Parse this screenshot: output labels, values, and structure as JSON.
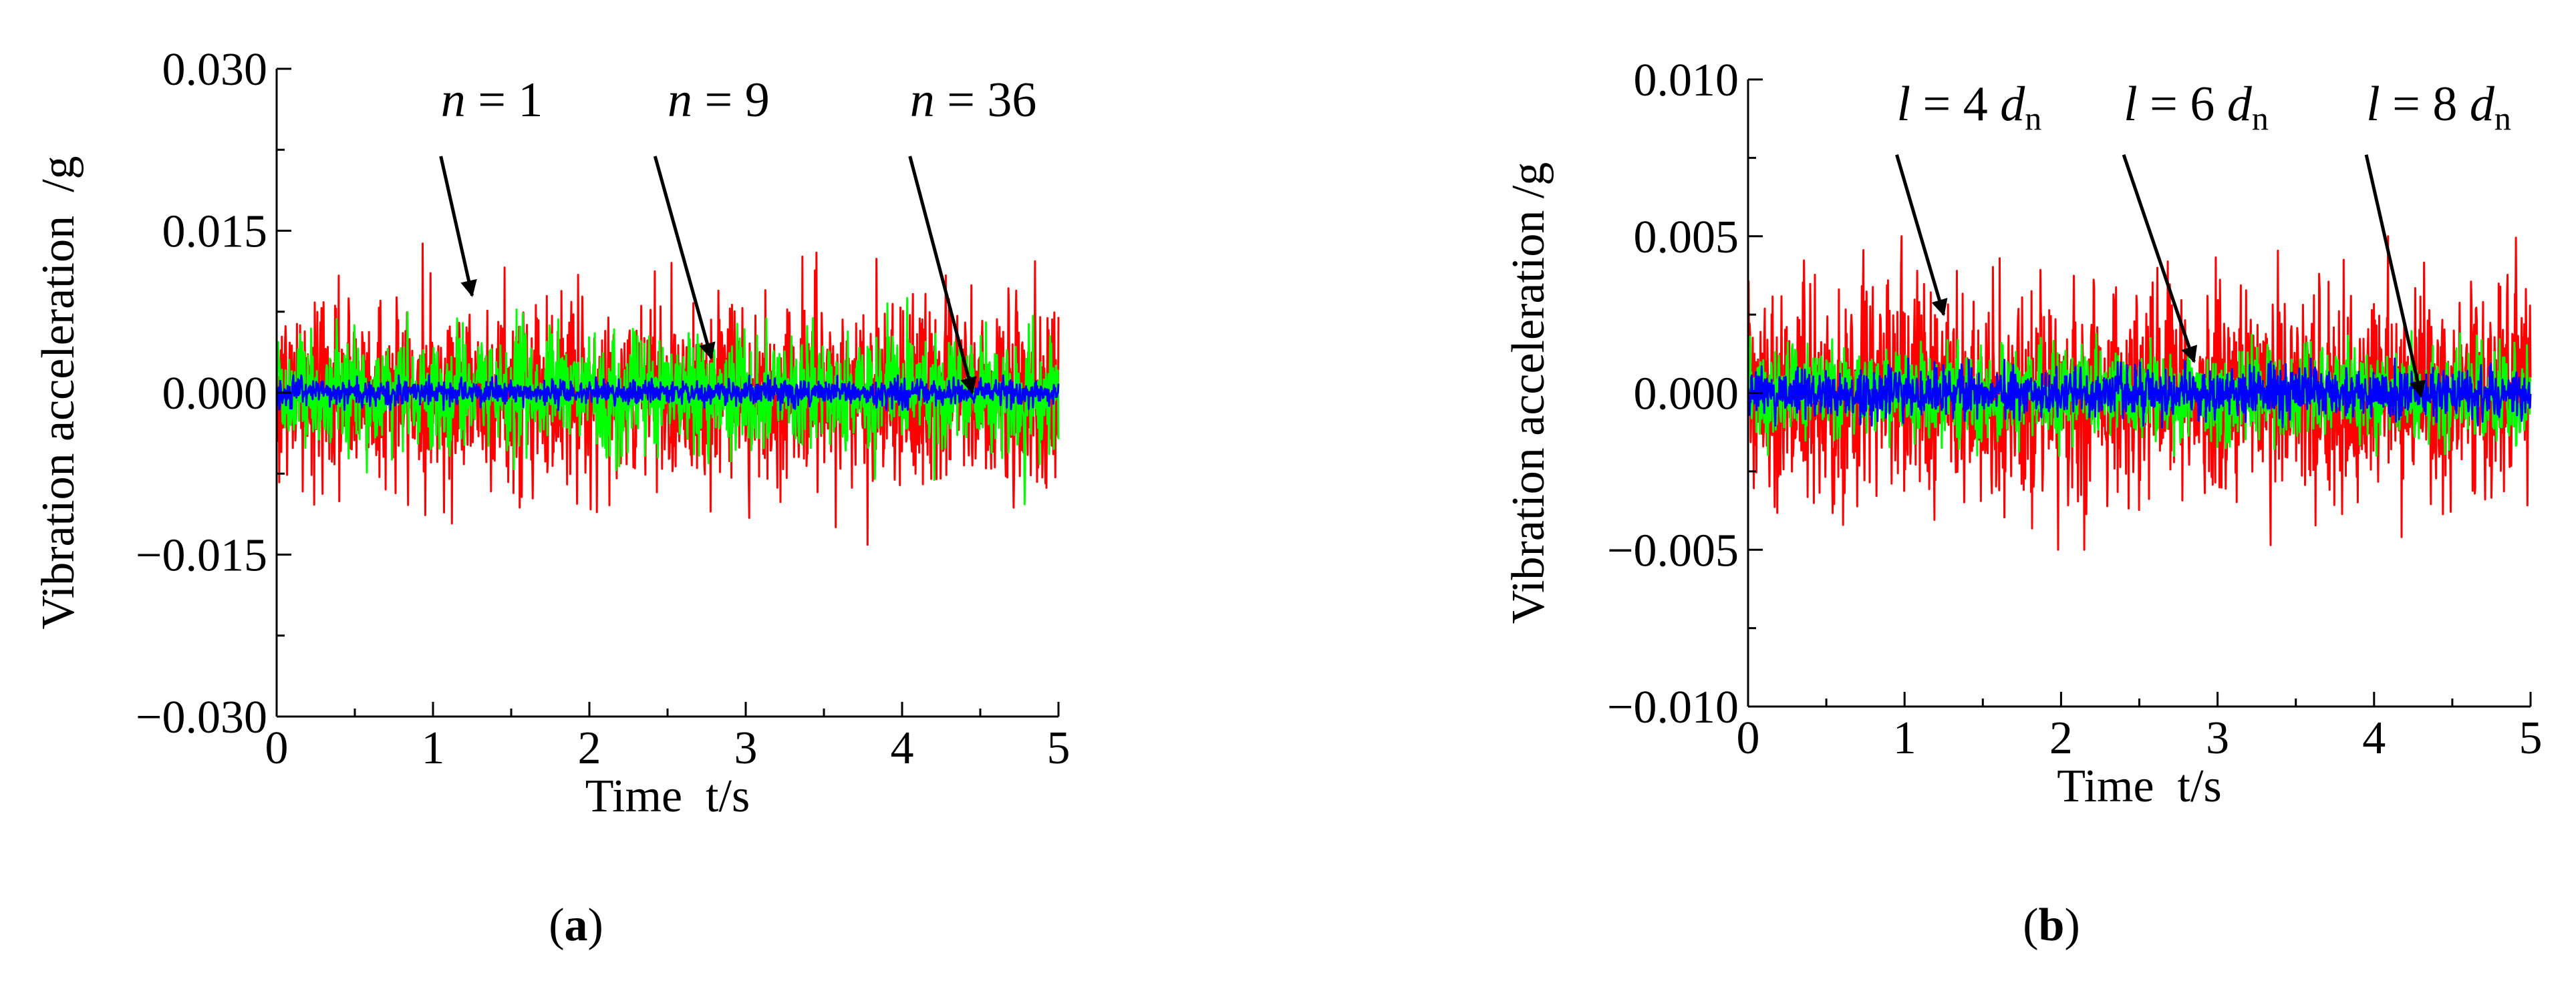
{
  "figure": {
    "background": "#ffffff"
  },
  "chart_data": [
    {
      "panel_label": "a",
      "type": "line",
      "title": "",
      "xlabel": "Time  t/s",
      "ylabel": "Vibration acceleration  /g",
      "xlim": [
        0,
        5
      ],
      "ylim": [
        -0.03,
        0.03
      ],
      "xticks": [
        0,
        1,
        2,
        3,
        4,
        5
      ],
      "xtick_labels": [
        "0",
        "1",
        "2",
        "3",
        "4",
        "5"
      ],
      "yticks": [
        -0.03,
        -0.015,
        0,
        0.015,
        0.03
      ],
      "ytick_labels": [
        "−0.030",
        "−0.015",
        "0.000",
        "0.015",
        "0.030"
      ],
      "grid": false,
      "legend": "none",
      "series": [
        {
          "label_var": "n",
          "label_eq": " = ",
          "label_num": "1",
          "color": "#ff0000",
          "typical_amplitude": 0.0078,
          "peak_amplitude": 0.017,
          "annotation_text_x": 1.05,
          "annotation_text_y": 0.0256,
          "annotation_tail_xy": [
            1.05,
            0.0219
          ],
          "annotation_head_xy": [
            1.25,
            0.009
          ]
        },
        {
          "label_var": "n",
          "label_eq": " = ",
          "label_num": "9",
          "color": "#00ff00",
          "typical_amplitude": 0.0048,
          "peak_amplitude": 0.012,
          "annotation_text_x": 2.5,
          "annotation_text_y": 0.0256,
          "annotation_tail_xy": [
            2.42,
            0.0219
          ],
          "annotation_head_xy": [
            2.78,
            0.0032
          ]
        },
        {
          "label_var": "n",
          "label_eq": " = ",
          "label_num": "36",
          "color": "#0000ff",
          "typical_amplitude": 0.0011,
          "peak_amplitude": 0.0016,
          "annotation_text_x": 4.05,
          "annotation_text_y": 0.0256,
          "annotation_tail_xy": [
            4.05,
            0.0219
          ],
          "annotation_head_xy": [
            4.45,
            0.0
          ]
        }
      ]
    },
    {
      "panel_label": "b",
      "type": "line",
      "title": "",
      "xlabel": "Time  t/s",
      "ylabel": "Vibration acceleration /g",
      "xlim": [
        0,
        5
      ],
      "ylim": [
        -0.01,
        0.01
      ],
      "xticks": [
        0,
        1,
        2,
        3,
        4,
        5
      ],
      "xtick_labels": [
        "0",
        "1",
        "2",
        "3",
        "4",
        "5"
      ],
      "yticks": [
        -0.01,
        -0.005,
        0,
        0.005,
        0.01
      ],
      "ytick_labels": [
        "−0.010",
        "−0.005",
        "0.000",
        "0.005",
        "0.010"
      ],
      "grid": false,
      "legend": "none",
      "series": [
        {
          "label_var": "l",
          "label_eq": " = ",
          "label_num": "4 ",
          "label_sub_var": "d",
          "label_sub": "n",
          "color": "#ff0000",
          "typical_amplitude": 0.003,
          "peak_amplitude": 0.005,
          "annotation_text_x": 0.95,
          "annotation_text_y": 0.0087,
          "annotation_tail_xy": [
            0.95,
            0.0076
          ],
          "annotation_head_xy": [
            1.25,
            0.0025
          ]
        },
        {
          "label_var": "l",
          "label_eq": " = ",
          "label_num": "6 ",
          "label_sub_var": "d",
          "label_sub": "n",
          "color": "#00ff00",
          "typical_amplitude": 0.0013,
          "peak_amplitude": 0.002,
          "annotation_text_x": 2.4,
          "annotation_text_y": 0.0087,
          "annotation_tail_xy": [
            2.4,
            0.0076
          ],
          "annotation_head_xy": [
            2.85,
            0.001
          ]
        },
        {
          "label_var": "l",
          "label_eq": " = ",
          "label_num": "8 ",
          "label_sub_var": "d",
          "label_sub": "n",
          "color": "#0000ff",
          "typical_amplitude": 0.0007,
          "peak_amplitude": 0.0011,
          "annotation_text_x": 3.95,
          "annotation_text_y": 0.0087,
          "annotation_tail_xy": [
            3.95,
            0.0076
          ],
          "annotation_head_xy": [
            4.3,
            -0.0001
          ]
        }
      ]
    }
  ]
}
